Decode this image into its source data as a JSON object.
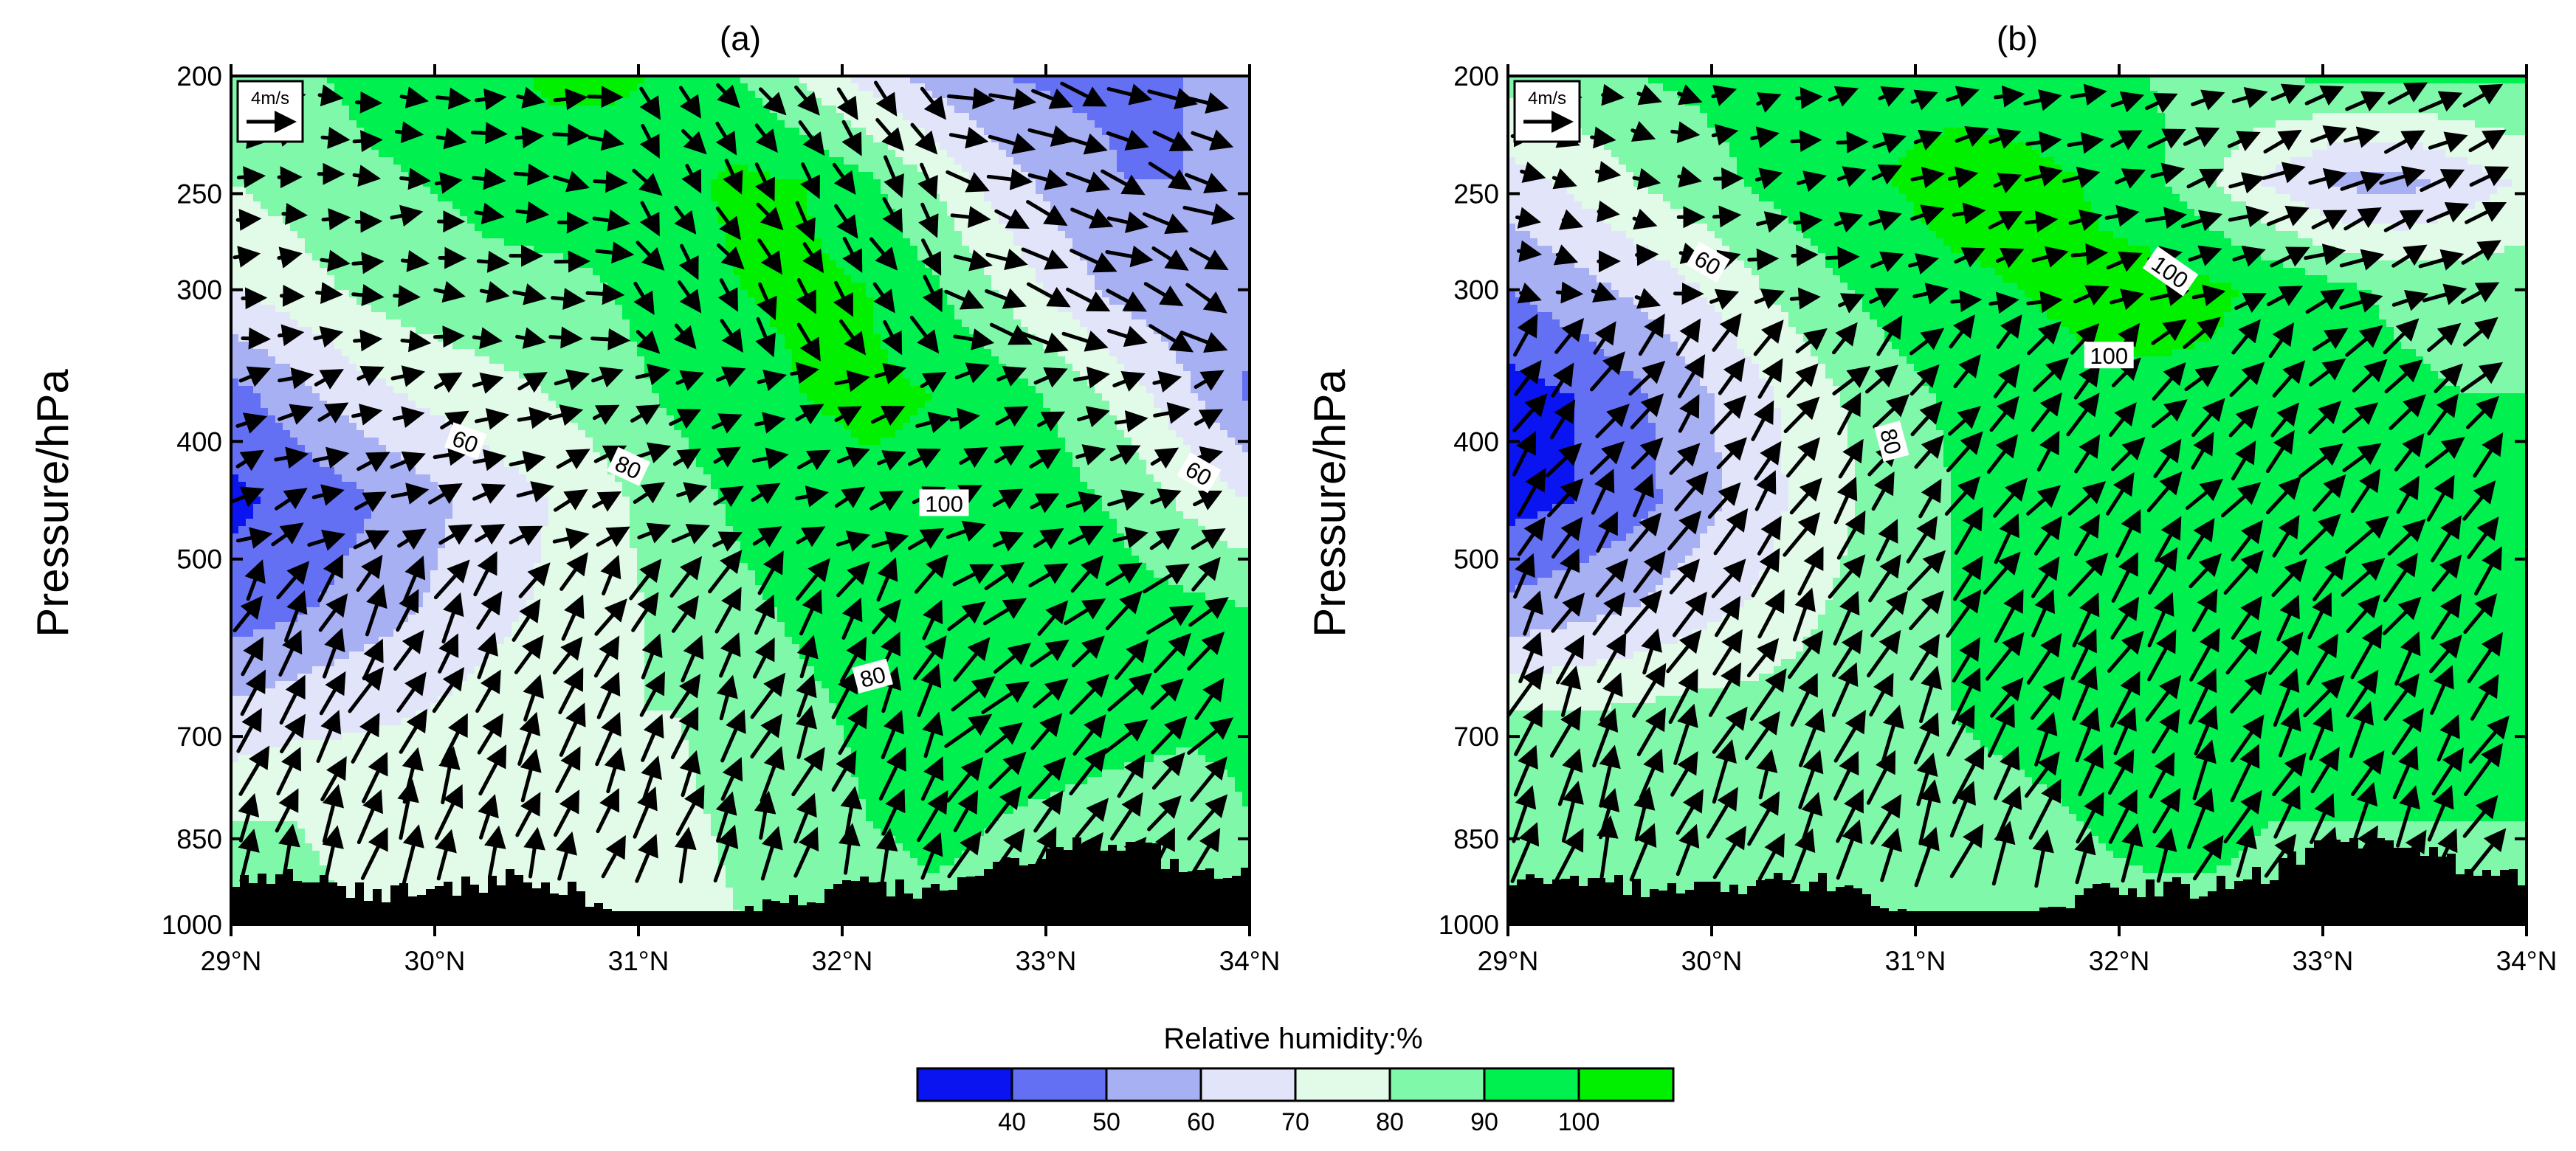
{
  "chart_data": {
    "type": "heatmap",
    "colorbar": {
      "title": "Relative humidity:%",
      "levels": [
        40,
        50,
        60,
        70,
        80,
        90,
        100
      ],
      "labels": [
        "40",
        "50",
        "60",
        "70",
        "80",
        "90",
        "100"
      ],
      "colors": [
        "#0a14f0",
        "#6470f4",
        "#a8b0f4",
        "#e2e4fa",
        "#e2fae8",
        "#80f8aa",
        "#00f050",
        "#00f000"
      ]
    },
    "ylabel": "Pressure/hPa",
    "xticks": [
      29,
      30,
      31,
      32,
      33,
      34
    ],
    "xtick_labels": [
      "29°N",
      "30°N",
      "31°N",
      "32°N",
      "33°N",
      "34°N"
    ],
    "yticks": [
      200,
      250,
      300,
      400,
      500,
      700,
      850,
      1000
    ],
    "ytick_labels": [
      "200",
      "250",
      "300",
      "400",
      "500",
      "700",
      "850",
      "1000"
    ],
    "xlim": [
      29,
      34
    ],
    "ylim": [
      1000,
      200
    ],
    "yscale": "log",
    "reference_vector": "4m/s",
    "panels": [
      {
        "title": "(a)",
        "contour_labels": [
          {
            "text": "60",
            "lat": 30.15,
            "p": 400,
            "angle": 20
          },
          {
            "text": "80",
            "lat": 30.95,
            "p": 420,
            "angle": 25
          },
          {
            "text": "100",
            "lat": 32.5,
            "p": 450,
            "angle": 0
          },
          {
            "text": "80",
            "lat": 32.15,
            "p": 625,
            "angle": -15
          },
          {
            "text": "60",
            "lat": 33.75,
            "p": 425,
            "angle": 30
          }
        ],
        "rh_grid": [
          [
            84,
            88,
            92,
            96,
            96,
            102,
            102,
            98,
            90,
            78,
            66,
            56,
            50,
            48,
            48,
            50,
            60
          ],
          [
            80,
            84,
            88,
            90,
            92,
            94,
            94,
            98,
            102,
            100,
            92,
            80,
            66,
            56,
            50,
            50,
            58
          ],
          [
            70,
            76,
            82,
            86,
            88,
            88,
            90,
            96,
            100,
            102,
            100,
            92,
            80,
            66,
            56,
            52,
            54
          ],
          [
            46,
            56,
            66,
            72,
            76,
            80,
            86,
            92,
            96,
            100,
            102,
            100,
            96,
            88,
            76,
            62,
            48
          ],
          [
            38,
            42,
            48,
            56,
            64,
            70,
            78,
            86,
            92,
            96,
            98,
            98,
            96,
            94,
            88,
            78,
            70
          ],
          [
            44,
            48,
            54,
            60,
            66,
            72,
            78,
            82,
            88,
            92,
            94,
            96,
            96,
            96,
            94,
            92,
            90
          ],
          [
            62,
            66,
            68,
            70,
            74,
            78,
            80,
            80,
            84,
            88,
            92,
            94,
            96,
            96,
            94,
            92,
            92
          ],
          [
            80,
            80,
            78,
            76,
            74,
            72,
            74,
            78,
            82,
            86,
            90,
            92,
            90,
            88,
            86,
            86,
            90
          ],
          [
            84,
            82,
            80,
            78,
            74,
            72,
            72,
            76,
            80,
            84,
            86,
            88,
            88,
            86,
            86,
            88,
            90
          ]
        ]
      },
      {
        "title": "(b)",
        "contour_labels": [
          {
            "text": "60",
            "lat": 29.98,
            "p": 285,
            "angle": 30
          },
          {
            "text": "100",
            "lat": 32.25,
            "p": 290,
            "angle": 35
          },
          {
            "text": "100",
            "lat": 31.95,
            "p": 340,
            "angle": 0
          },
          {
            "text": "80",
            "lat": 30.88,
            "p": 400,
            "angle": 75
          }
        ],
        "rh_grid": [
          [
            84,
            86,
            90,
            92,
            94,
            96,
            98,
            96,
            94,
            92,
            90,
            88,
            90,
            92,
            92,
            92,
            92
          ],
          [
            66,
            72,
            80,
            86,
            92,
            96,
            100,
            104,
            104,
            100,
            94,
            82,
            68,
            58,
            56,
            64,
            72
          ],
          [
            50,
            56,
            62,
            70,
            80,
            88,
            94,
            98,
            100,
            102,
            104,
            102,
            98,
            92,
            88,
            86,
            86
          ],
          [
            36,
            40,
            48,
            58,
            68,
            78,
            86,
            92,
            96,
            98,
            98,
            98,
            96,
            94,
            92,
            90,
            90
          ],
          [
            36,
            40,
            46,
            56,
            66,
            76,
            84,
            90,
            92,
            94,
            96,
            96,
            94,
            94,
            92,
            92,
            92
          ],
          [
            52,
            56,
            60,
            66,
            72,
            80,
            86,
            90,
            92,
            94,
            96,
            96,
            96,
            94,
            94,
            94,
            94
          ],
          [
            80,
            80,
            82,
            84,
            84,
            86,
            88,
            90,
            92,
            94,
            94,
            94,
            92,
            92,
            92,
            92,
            92
          ],
          [
            86,
            88,
            90,
            88,
            86,
            86,
            86,
            88,
            88,
            90,
            92,
            92,
            90,
            90,
            90,
            90,
            90
          ],
          [
            84,
            84,
            84,
            84,
            84,
            86,
            86,
            86,
            88,
            88,
            88,
            88,
            88,
            88,
            88,
            88,
            88
          ]
        ]
      }
    ]
  }
}
